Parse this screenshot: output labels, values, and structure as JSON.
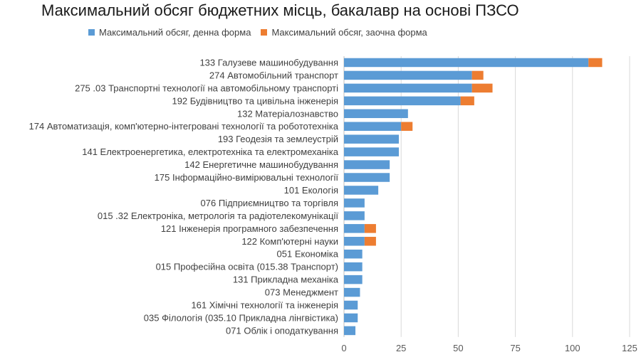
{
  "chart_data": {
    "type": "bar",
    "orientation": "horizontal",
    "stacked": true,
    "title": "Максимальний обсяг бюджетних місць, бакалавр на основі  ПЗСО",
    "xlabel": "",
    "ylabel": "",
    "xlim": [
      0,
      125
    ],
    "xticks": [
      0,
      25,
      50,
      75,
      100,
      125
    ],
    "grid": "vertical",
    "legend_position": "top",
    "categories": [
      "133 Галузеве машинобудування",
      "274 Автомобільний транспорт",
      "275 .03 Транспортні технології на автомобільному транспорті",
      "192 Будівництво та цивільна інженерія",
      "132 Матеріалознавство",
      "174 Автоматизація, комп'ютерно-інтегровані технології  та робототехніка",
      "193 Геодезія та землеустрій",
      "141 Електроенергетика, електротехніка та електромеханіка",
      "142 Енергетичне машинобудування",
      "175 Інформаційно-вимірювальні технології",
      "101 Екологія",
      "076 Підприємництво та торгівля",
      "015 .32 Електроніка, метрологія та радіотелекомунікації",
      "121 Інженерія програмного забезпечення",
      "122 Комп'ютерні науки",
      "051 Економіка",
      "015 Професійна освіта (015.38 Транспорт)",
      "131 Прикладна механіка",
      "073 Менеджмент",
      "161 Хімічні технології та інженерія",
      "035 Філологія (035.10 Прикладна лінгвістика)",
      "071 Облік і оподаткування"
    ],
    "series": [
      {
        "name": "Максимальний обсяг, денна форма",
        "color": "#5B9BD5",
        "values": [
          107,
          56,
          56,
          51,
          28,
          25,
          24,
          24,
          20,
          20,
          15,
          9,
          9,
          9,
          9,
          8,
          8,
          8,
          7,
          6,
          6,
          5
        ]
      },
      {
        "name": "Максимальний обсяг, заочна форма",
        "color": "#ED7D31",
        "values": [
          6,
          5,
          9,
          6,
          0,
          5,
          0,
          0,
          0,
          0,
          0,
          0,
          0,
          5,
          5,
          0,
          0,
          0,
          0,
          0,
          0,
          0
        ]
      }
    ]
  }
}
